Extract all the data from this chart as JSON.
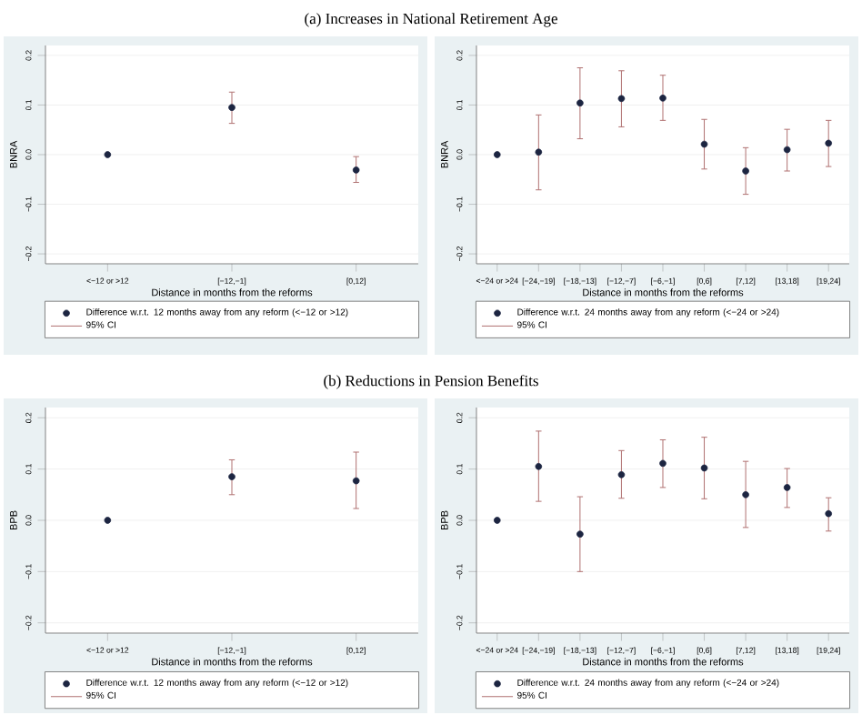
{
  "chart_data": [
    {
      "type": "scatter",
      "title": "(a) Increases in National Retirement Age",
      "xlabel": "Distance in months from the reforms",
      "ylabel": "BNRA",
      "categories": [
        "<−12 or >12",
        "[−12,−1]",
        "[0,12]"
      ],
      "ylim": [
        -0.22,
        0.22
      ],
      "yticks": [
        {
          "value": -0.2,
          "label": "−0.2"
        },
        {
          "value": -0.1,
          "label": "−0.1"
        },
        {
          "value": 0,
          "label": "0.0"
        },
        {
          "value": 0.1,
          "label": "0.1"
        },
        {
          "value": 0.2,
          "label": "0.2"
        }
      ],
      "grid": "y",
      "legend": "bottom",
      "marker": "circle",
      "series": [
        {
          "name": "Difference w.r.t. 12 months away from any reform (<−12 or >12)",
          "color": "#1c2541",
          "values": [
            0,
            0.095,
            -0.031
          ],
          "errors": [
            null,
            [
              0.063,
              0.126
            ],
            [
              -0.056,
              -0.004
            ]
          ]
        }
      ],
      "annotations": [
        "95% CI"
      ]
    },
    {
      "type": "scatter",
      "xlabel": "Distance in months from the reforms",
      "ylabel": "BNRA",
      "categories": [
        "<−24 or >24",
        "[−24,−19]",
        "[−18,−13]",
        "[−12,−7]",
        "[−6,−1]",
        "[0,6]",
        "[7,12]",
        "[13,18]",
        "[19,24]"
      ],
      "ylim": [
        -0.22,
        0.22
      ],
      "yticks": [
        {
          "value": -0.2,
          "label": "−0.2"
        },
        {
          "value": -0.1,
          "label": "−0.1"
        },
        {
          "value": 0,
          "label": "0.0"
        },
        {
          "value": 0.1,
          "label": "0.1"
        },
        {
          "value": 0.2,
          "label": "0.2"
        }
      ],
      "grid": "y",
      "legend": "bottom",
      "marker": "circle",
      "series": [
        {
          "name": "Difference w.r.t. 24 months away from any reform (<−24 or >24)",
          "color": "#1c2541",
          "values": [
            0,
            0.005,
            0.104,
            0.113,
            0.114,
            0.021,
            -0.033,
            0.01,
            0.023
          ],
          "errors": [
            null,
            [
              -0.071,
              0.08
            ],
            [
              0.032,
              0.175
            ],
            [
              0.056,
              0.169
            ],
            [
              0.069,
              0.16
            ],
            [
              -0.029,
              0.071
            ],
            [
              -0.08,
              0.014
            ],
            [
              -0.033,
              0.051
            ],
            [
              -0.024,
              0.069
            ]
          ]
        }
      ],
      "annotations": [
        "95% CI"
      ]
    },
    {
      "type": "scatter",
      "title": "(b) Reductions in Pension Benefits",
      "xlabel": "Distance in months from the reforms",
      "ylabel": "BPB",
      "categories": [
        "<−12 or >12",
        "[−12,−1]",
        "[0,12]"
      ],
      "ylim": [
        -0.22,
        0.22
      ],
      "yticks": [
        {
          "value": -0.2,
          "label": "−0.2"
        },
        {
          "value": -0.1,
          "label": "−0.1"
        },
        {
          "value": 0,
          "label": "0.0"
        },
        {
          "value": 0.1,
          "label": "0.1"
        },
        {
          "value": 0.2,
          "label": "0.2"
        }
      ],
      "grid": "y",
      "legend": "bottom",
      "marker": "circle",
      "series": [
        {
          "name": "Difference w.r.t. 12 months away from any reform (<−12 or >12)",
          "color": "#1c2541",
          "values": [
            0,
            0.085,
            0.077
          ],
          "errors": [
            null,
            [
              0.05,
              0.118
            ],
            [
              0.023,
              0.133
            ]
          ]
        }
      ],
      "annotations": [
        "95% CI"
      ]
    },
    {
      "type": "scatter",
      "xlabel": "Distance in months from the reforms",
      "ylabel": "BPB",
      "categories": [
        "<−24 or >24",
        "[−24,−19]",
        "[−18,−13]",
        "[−12,−7]",
        "[−6,−1]",
        "[0,6]",
        "[7,12]",
        "[13,18]",
        "[19,24]"
      ],
      "ylim": [
        -0.22,
        0.22
      ],
      "yticks": [
        {
          "value": -0.2,
          "label": "−0.2"
        },
        {
          "value": -0.1,
          "label": "−0.1"
        },
        {
          "value": 0,
          "label": "0.0"
        },
        {
          "value": 0.1,
          "label": "0.1"
        },
        {
          "value": 0.2,
          "label": "0.2"
        }
      ],
      "grid": "y",
      "legend": "bottom",
      "marker": "circle",
      "series": [
        {
          "name": "Difference w.r.t. 24 months away from any reform (<−24 or >24)",
          "color": "#1c2541",
          "values": [
            0,
            0.105,
            -0.027,
            0.089,
            0.111,
            0.102,
            0.05,
            0.064,
            0.013
          ],
          "errors": [
            null,
            [
              0.037,
              0.174
            ],
            [
              -0.1,
              0.046
            ],
            [
              0.043,
              0.136
            ],
            [
              0.064,
              0.157
            ],
            [
              0.042,
              0.162
            ],
            [
              -0.014,
              0.115
            ],
            [
              0.025,
              0.101
            ],
            [
              -0.021,
              0.044
            ]
          ]
        }
      ],
      "annotations": [
        "95% CI"
      ]
    }
  ]
}
